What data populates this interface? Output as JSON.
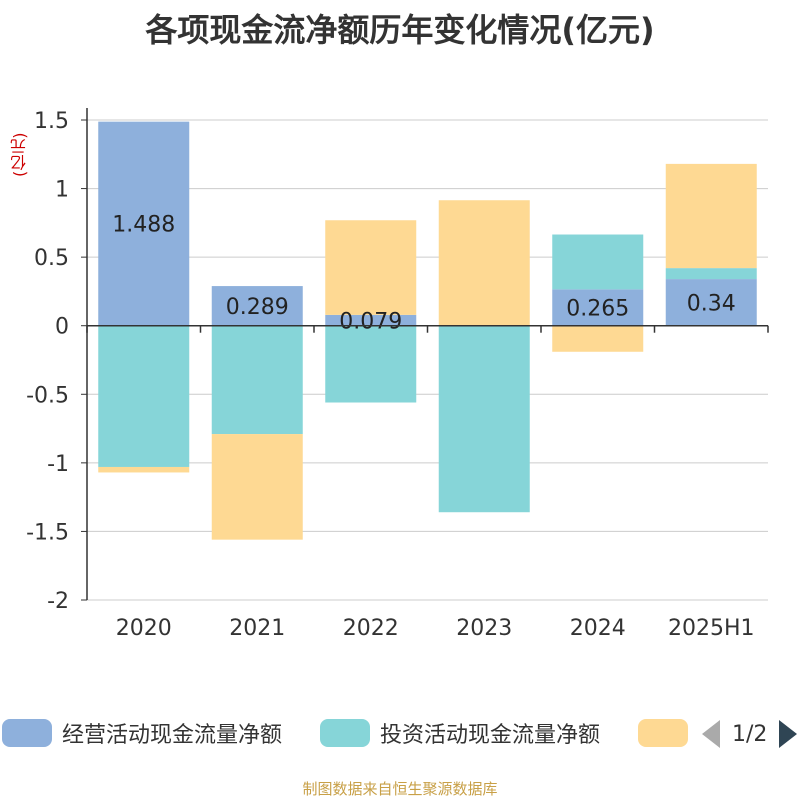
{
  "title": "各项现金流净额历年变化情况(亿元)",
  "unit": "(亿元)",
  "footer": "制图数据来自恒生聚源数据库",
  "legend": {
    "items": [
      {
        "label": "经营活动现金流量净额",
        "color": "#8eb0dc"
      },
      {
        "label": "投资活动现金流量净额",
        "color": "#86d5d8"
      },
      {
        "label": "",
        "color": "#fed993"
      }
    ],
    "page": "1/2"
  },
  "chart_data": {
    "type": "bar",
    "stacked": true,
    "categories": [
      "2020",
      "2021",
      "2022",
      "2023",
      "2024",
      "2025H1"
    ],
    "ylim": [
      -2,
      1.5
    ],
    "yticks": [
      "1.5",
      "1",
      "0.5",
      "0",
      "-0.5",
      "-1",
      "-1.5",
      "-2"
    ],
    "grid": true,
    "legend_position": "bottom",
    "series": [
      {
        "name": "经营活动现金流量净额",
        "color": "#8eb0dc",
        "values": [
          1.488,
          0.289,
          0.079,
          0.005,
          0.265,
          0.34
        ],
        "labels": [
          "1.488",
          "0.289",
          "0.079",
          "",
          "0.265",
          "0.34"
        ]
      },
      {
        "name": "投资活动现金流量净额",
        "color": "#86d5d8",
        "values": [
          -1.03,
          -0.79,
          -0.56,
          -1.36,
          0.4,
          0.08
        ]
      },
      {
        "color": "#fed993",
        "values": [
          -0.04,
          -0.77,
          0.69,
          0.91,
          -0.19,
          0.76
        ]
      }
    ]
  }
}
